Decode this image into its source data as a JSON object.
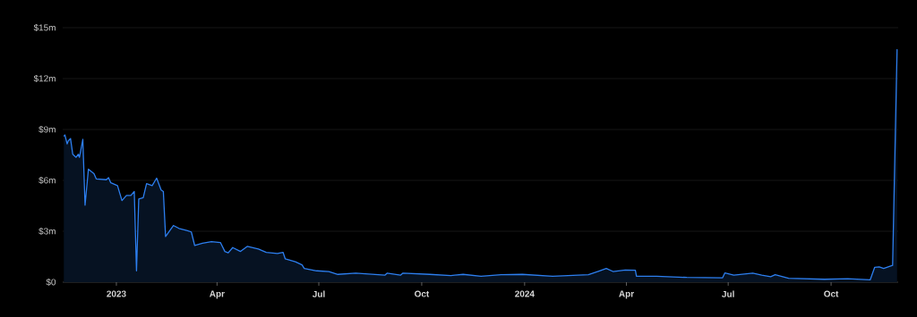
{
  "chart_data": {
    "type": "area",
    "color": "#2d7ff0",
    "grid": "y",
    "xlim": [
      "2022-11-14",
      "2024-11-30"
    ],
    "ylim": [
      0,
      15000000
    ],
    "xticks": [
      {
        "value": "2023-01-01",
        "label": "2023"
      },
      {
        "value": "2023-04-01",
        "label": "Apr"
      },
      {
        "value": "2023-07-01",
        "label": "Jul"
      },
      {
        "value": "2023-10-01",
        "label": "Oct"
      },
      {
        "value": "2024-01-01",
        "label": "2024"
      },
      {
        "value": "2024-04-01",
        "label": "Apr"
      },
      {
        "value": "2024-07-01",
        "label": "Jul"
      },
      {
        "value": "2024-10-01",
        "label": "Oct"
      }
    ],
    "yticks": [
      {
        "value": 0,
        "label": "$0"
      },
      {
        "value": 3000000,
        "label": "$3m"
      },
      {
        "value": 6000000,
        "label": "$6m"
      },
      {
        "value": 9000000,
        "label": "$9m"
      },
      {
        "value": 12000000,
        "label": "$12m"
      },
      {
        "value": 15000000,
        "label": "$15m"
      }
    ],
    "x": [
      "2022-11-15",
      "2022-11-16",
      "2022-11-18",
      "2022-11-19",
      "2022-11-21",
      "2022-11-23",
      "2022-11-26",
      "2022-11-28",
      "2022-11-29",
      "2022-12-02",
      "2022-12-04",
      "2022-12-07",
      "2022-12-12",
      "2022-12-14",
      "2022-12-23",
      "2022-12-25",
      "2022-12-27",
      "2023-01-02",
      "2023-01-06",
      "2023-01-10",
      "2023-01-14",
      "2023-01-17",
      "2023-01-19",
      "2023-01-21",
      "2023-01-25",
      "2023-01-28",
      "2023-02-02",
      "2023-02-06",
      "2023-02-10",
      "2023-02-12",
      "2023-02-14",
      "2023-02-21",
      "2023-02-26",
      "2023-03-05",
      "2023-03-09",
      "2023-03-12",
      "2023-03-19",
      "2023-03-27",
      "2023-04-04",
      "2023-04-08",
      "2023-04-11",
      "2023-04-15",
      "2023-04-22",
      "2023-04-28",
      "2023-05-08",
      "2023-05-15",
      "2023-05-25",
      "2023-05-30",
      "2023-06-01",
      "2023-06-10",
      "2023-06-16",
      "2023-06-18",
      "2023-06-29",
      "2023-07-10",
      "2023-07-18",
      "2023-08-03",
      "2023-08-29",
      "2023-08-31",
      "2023-09-12",
      "2023-09-14",
      "2023-10-08",
      "2023-10-27",
      "2023-11-07",
      "2023-11-23",
      "2023-12-11",
      "2023-12-30",
      "2024-01-26",
      "2024-02-27",
      "2024-03-08",
      "2024-03-14",
      "2024-03-20",
      "2024-03-31",
      "2024-04-09",
      "2024-04-10",
      "2024-04-28",
      "2024-05-25",
      "2024-06-26",
      "2024-06-28",
      "2024-07-06",
      "2024-07-23",
      "2024-07-31",
      "2024-08-08",
      "2024-08-12",
      "2024-08-24",
      "2024-09-25",
      "2024-10-16",
      "2024-11-05",
      "2024-11-09",
      "2024-11-13",
      "2024-11-17",
      "2024-11-25",
      "2024-11-29"
    ],
    "values": [
      8600000,
      8680000,
      8150000,
      8330000,
      8470000,
      7540000,
      7360000,
      7540000,
      7360000,
      8420000,
      4540000,
      6660000,
      6390000,
      6090000,
      6040000,
      6160000,
      5860000,
      5690000,
      4810000,
      5110000,
      5110000,
      5340000,
      670000,
      4900000,
      4980000,
      5810000,
      5690000,
      6130000,
      5430000,
      5340000,
      2690000,
      3340000,
      3170000,
      3050000,
      2960000,
      2170000,
      2290000,
      2390000,
      2340000,
      1810000,
      1730000,
      2040000,
      1810000,
      2110000,
      1950000,
      1760000,
      1690000,
      1760000,
      1370000,
      1200000,
      1020000,
      810000,
      670000,
      630000,
      460000,
      530000,
      410000,
      530000,
      410000,
      530000,
      460000,
      390000,
      460000,
      350000,
      440000,
      460000,
      350000,
      440000,
      670000,
      810000,
      630000,
      720000,
      700000,
      350000,
      350000,
      280000,
      260000,
      540000,
      410000,
      530000,
      410000,
      320000,
      440000,
      230000,
      170000,
      200000,
      140000,
      880000,
      900000,
      810000,
      990000,
      13730000
    ]
  }
}
